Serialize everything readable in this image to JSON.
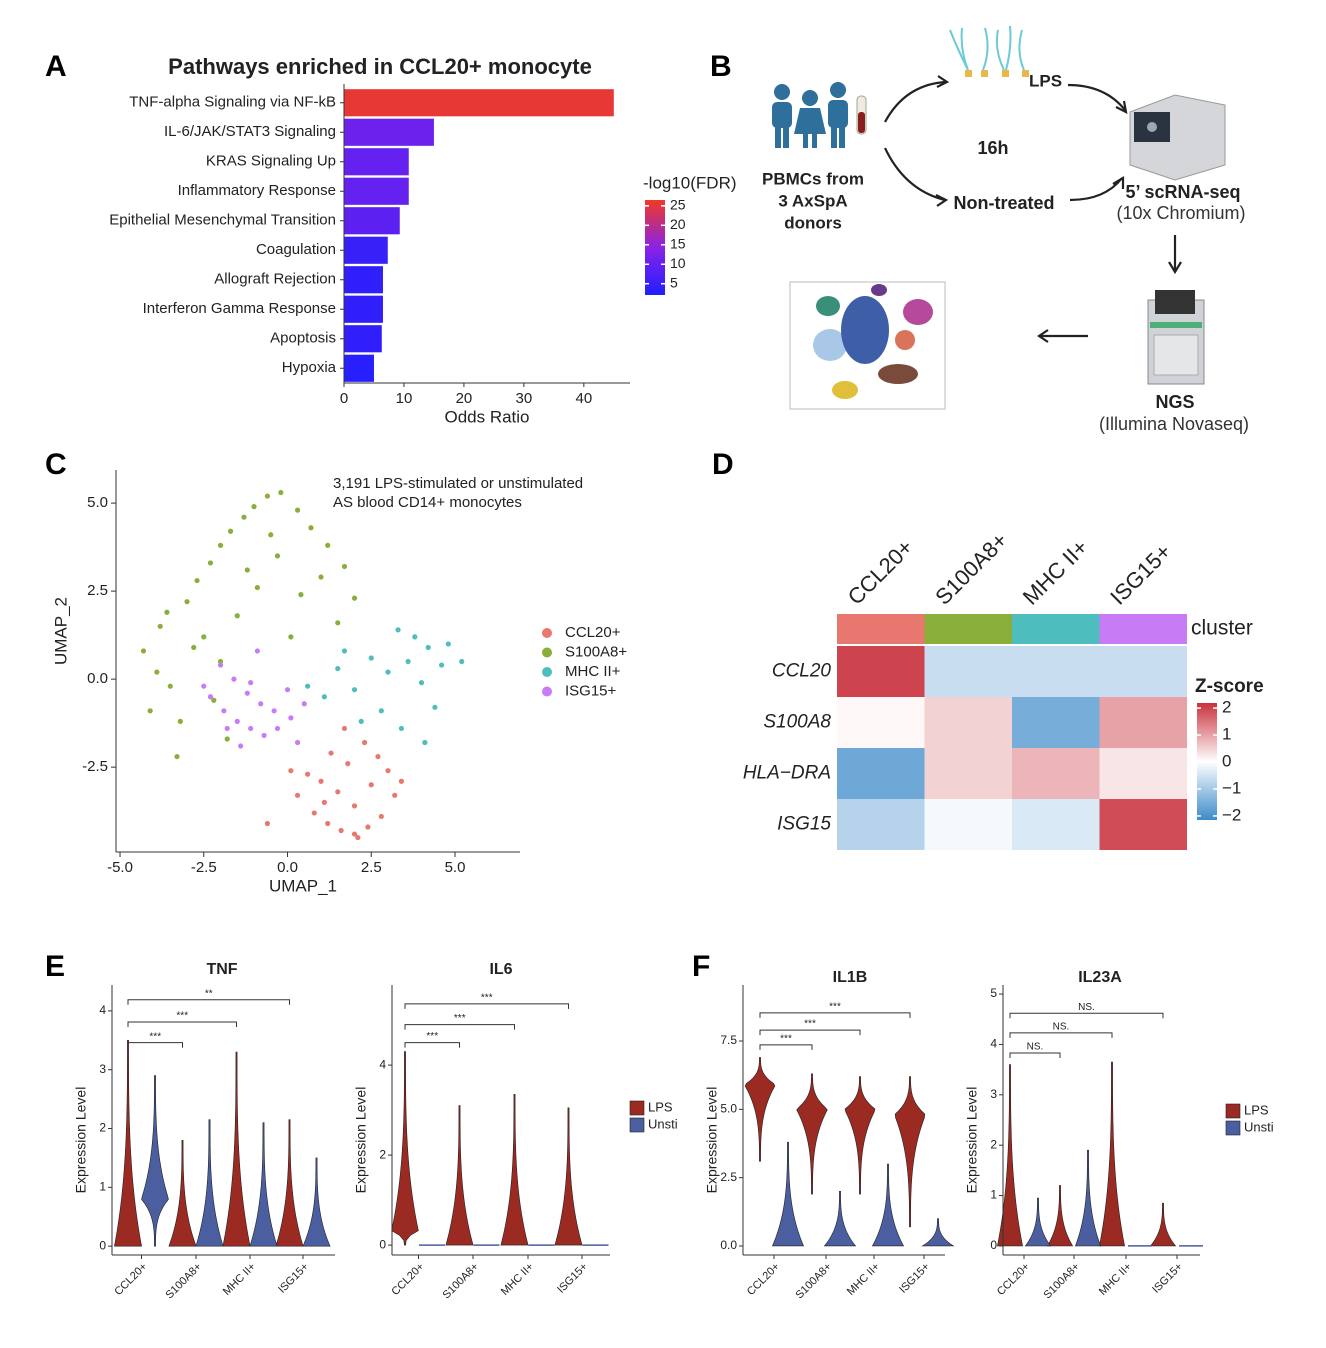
{
  "panel_labels": [
    "A",
    "B",
    "C",
    "D",
    "E",
    "F"
  ],
  "diagram": {
    "lps": "LPS",
    "time": "16h",
    "source": [
      "PBMCs from",
      "3 AxSpA",
      "donors"
    ],
    "control": "Non-treated",
    "sequencing": "5’ scRNA-seq",
    "platform": "(10x Chromium)",
    "ngs": "NGS",
    "ngs_platform": "(Illumina Novaseq)"
  },
  "chart_data": [
    {
      "type": "bar",
      "orientation": "horizontal",
      "title": "Pathways enriched in CCL20+ monocyte",
      "categories": [
        "TNF-alpha Signaling via NF-kB",
        "IL-6/JAK/STAT3 Signaling",
        "KRAS Signaling Up",
        "Inflammatory Response",
        "Epithelial Mesenchymal Transition",
        "Coagulation",
        "Allograft Rejection",
        "Interferon Gamma Response",
        "Apoptosis",
        "Hypoxia"
      ],
      "values": [
        45,
        15,
        10.8,
        10.8,
        9.3,
        7.3,
        6.5,
        6.5,
        6.3,
        5
      ],
      "color_values": [
        25.5,
        11,
        10,
        10,
        9,
        5,
        4,
        4,
        4,
        3
      ],
      "colorbar": {
        "label": "-log10(FDR)",
        "lim": [
          2.1,
          26.5
        ],
        "ticks": [
          5,
          10,
          15,
          20,
          25
        ],
        "colors": [
          "#1f1fff",
          "#8a22e6",
          "#f03a25"
        ]
      },
      "xlabel": "Odds Ratio",
      "xlim": [
        0,
        47.7
      ],
      "xticks": [
        0,
        10,
        20,
        30,
        40
      ]
    },
    {
      "type": "scatter",
      "annotation": [
        "3,191 LPS-stimulated or unstimulated",
        "AS blood CD14+ monocytes"
      ],
      "xlabel": "UMAP_1",
      "ylabel": "UMAP_2",
      "xlim": [
        -5.12,
        6.94
      ],
      "ylim": [
        -4.91,
        5.94
      ],
      "xticks": [
        {
          "value": -5,
          "label": "-5.0"
        },
        -2.5,
        {
          "value": 0,
          "label": "0.0"
        },
        2.5,
        {
          "value": 5,
          "label": "5.0"
        }
      ],
      "yticks": [
        -2.5,
        {
          "value": 0,
          "label": "0.0"
        },
        2.5,
        {
          "value": 5,
          "label": "5.0"
        }
      ],
      "legend": "right",
      "series": [
        {
          "name": "CCL20+",
          "color": "#e8776f",
          "x": [
            0.3,
            0.8,
            1.2,
            1.6,
            2,
            2.4,
            2.8,
            3.2,
            0.6,
            1,
            1.5,
            2,
            2.5,
            3,
            1.3,
            1.8,
            2.3,
            2.7,
            0.1,
            3.4,
            1.1,
            2.1,
            -0.6,
            1.7
          ],
          "values": [
            -3.3,
            -3.8,
            -4.1,
            -4.3,
            -4.4,
            -4.2,
            -3.9,
            -3.3,
            -2.7,
            -2.9,
            -3.2,
            -3.6,
            -3,
            -2.6,
            -2.1,
            -2.4,
            -1.8,
            -2.2,
            -2.6,
            -2.9,
            -3.5,
            -4.5,
            -4.1,
            -1.4
          ]
        },
        {
          "name": "S100A8+",
          "color": "#8aae3a",
          "x": [
            -4.3,
            -3.8,
            -3.5,
            -3.9,
            -3,
            -2.7,
            -2.3,
            -2,
            -1.7,
            -1.3,
            -1,
            -0.6,
            -0.2,
            0.3,
            0.7,
            1.2,
            1.7,
            -2.5,
            -2,
            -1.5,
            -0.9,
            -0.3,
            0.4,
            1,
            1.5,
            -3.2,
            -2.8,
            -3.6,
            -1.2,
            -0.5,
            -2.2,
            -4.1,
            -3.3,
            0.1,
            -1.8,
            2
          ],
          "values": [
            0.8,
            1.5,
            -0.2,
            0.2,
            2.2,
            2.8,
            3.3,
            3.8,
            4.2,
            4.6,
            4.9,
            5.2,
            5.3,
            4.8,
            4.3,
            3.8,
            3.2,
            1.2,
            0.5,
            1.8,
            2.6,
            3.5,
            2.4,
            2.9,
            1.6,
            -1.2,
            0.9,
            1.9,
            3.1,
            4.1,
            -0.6,
            -0.9,
            -2.2,
            1.2,
            -1.7,
            2.3
          ]
        },
        {
          "name": "MHC II+",
          "color": "#4dbdbd",
          "x": [
            3.3,
            3.8,
            4.2,
            4.6,
            3.6,
            4,
            4.4,
            3,
            2.5,
            2,
            1.5,
            1.1,
            0.6,
            2.8,
            3.4,
            4.8,
            2.2,
            1.7,
            4.1,
            5.2
          ],
          "values": [
            1.4,
            1.2,
            0.9,
            0.4,
            0.5,
            -0.1,
            -0.8,
            0.2,
            0.6,
            -0.3,
            0.3,
            -0.5,
            -0.2,
            -0.9,
            -1.4,
            1,
            -1.2,
            0.8,
            -1.8,
            0.5
          ]
        },
        {
          "name": "ISG15+",
          "color": "#c77cf5",
          "x": [
            -2.3,
            -1.9,
            -1.5,
            -1.1,
            -0.7,
            -0.3,
            0.1,
            0.5,
            -2,
            -1.6,
            -1.2,
            -0.8,
            -0.4,
            0,
            -1.4,
            -0.9,
            -2.5,
            0.3,
            -1.1,
            -1.8
          ],
          "values": [
            -0.5,
            -0.9,
            -1.2,
            -1.4,
            -1.6,
            -1.4,
            -1.1,
            -0.7,
            0.4,
            0,
            -0.4,
            -0.7,
            -0.9,
            -0.3,
            -1.9,
            0.8,
            -0.2,
            -1.8,
            -0.1,
            -1.4
          ]
        }
      ]
    },
    {
      "type": "heatmap",
      "columns": [
        "CCL20+",
        "S100A8+",
        "MHC II+",
        "ISG15+"
      ],
      "rows": [
        "CCL20",
        "S100A8",
        "HLA−DRA",
        "ISG15"
      ],
      "values": [
        [
          2,
          -0.6,
          -0.6,
          -0.6
        ],
        [
          0.1,
          0.5,
          -1.5,
          1.0
        ],
        [
          -1.6,
          0.5,
          0.8,
          0.3
        ],
        [
          -0.8,
          -0.1,
          -0.4,
          1.9
        ]
      ],
      "cluster_label": "cluster",
      "cluster_colors": [
        "#e8776f",
        "#8aae3a",
        "#4dbdbd",
        "#c77cf5"
      ],
      "colorbar": {
        "label": "Z-score",
        "lim": [
          -2.15,
          2.19
        ],
        "ticks": [
          2,
          1,
          0,
          {
            "value": -1,
            "label": "−1"
          },
          {
            "value": -2,
            "label": "−2"
          }
        ],
        "colors": [
          "#3d8bc9",
          "#ffffff",
          "#c9323d"
        ]
      }
    },
    {
      "type": "violin",
      "title": "TNF",
      "ylabel": "Expression Level",
      "categories": [
        "CCL20+",
        "S100A8+",
        "MHC II+",
        "ISG15+"
      ],
      "ylim": [
        -0.15,
        4.44
      ],
      "yticks": [
        0,
        1,
        2,
        3,
        4
      ],
      "series": [
        {
          "name": "LPS",
          "color": "#9b2a22",
          "values": [
            3.5,
            1.8,
            3.3,
            2.15
          ],
          "min": [
            0,
            0,
            0,
            0
          ],
          "mode": [
            0,
            0,
            0,
            0
          ]
        },
        {
          "name": "Unsti",
          "color": "#4a5ea0",
          "values": [
            2.9,
            2.15,
            2.1,
            1.5
          ],
          "min": [
            0,
            0,
            0,
            0
          ],
          "mode": [
            0.8,
            0,
            0,
            0
          ]
        }
      ],
      "comparisons": [
        {
          "from": 0,
          "to": 1,
          "y": 3.46,
          "label": "***"
        },
        {
          "from": 0,
          "to": 2,
          "y": 3.81,
          "label": "***"
        },
        {
          "from": 0,
          "to": 3,
          "y": 4.19,
          "label": "**"
        }
      ]
    },
    {
      "type": "violin",
      "title": "IL6",
      "ylabel": "Expression Level",
      "categories": [
        "CCL20+",
        "S100A8+",
        "MHC II+",
        "ISG15+"
      ],
      "ylim": [
        -0.22,
        5.78
      ],
      "yticks": [
        0,
        2,
        4
      ],
      "legend": "right",
      "series": [
        {
          "name": "LPS",
          "color": "#9b2a22",
          "values": [
            4.3,
            3.1,
            3.35,
            3.05
          ],
          "min": [
            0,
            0,
            0,
            0
          ],
          "mode": [
            0.3,
            0,
            0,
            0
          ]
        },
        {
          "name": "Unsti",
          "color": "#4a5ea0",
          "values": [
            0,
            0,
            0,
            0
          ],
          "min": [
            0,
            0,
            0,
            0
          ],
          "mode": [
            0,
            0,
            0,
            0
          ]
        }
      ],
      "comparisons": [
        {
          "from": 0,
          "to": 1,
          "y": 4.5,
          "label": "***"
        },
        {
          "from": 0,
          "to": 2,
          "y": 4.9,
          "label": "***"
        },
        {
          "from": 0,
          "to": 3,
          "y": 5.36,
          "label": "***"
        }
      ]
    },
    {
      "type": "violin",
      "title": "IL1B",
      "ylabel": "Expression Level",
      "categories": [
        "CCL20+",
        "S100A8+",
        "MHC II+",
        "ISG15+"
      ],
      "ylim": [
        -0.33,
        9.55
      ],
      "yticks": [
        {
          "value": 0,
          "label": "0.0"
        },
        2.5,
        {
          "value": 5,
          "label": "5.0"
        },
        7.5
      ],
      "series": [
        {
          "name": "LPS",
          "color": "#9b2a22",
          "values": [
            6.9,
            6.3,
            6.2,
            6.2
          ],
          "min": [
            3.1,
            1.9,
            1.9,
            0.7
          ],
          "mode": [
            5.9,
            5.0,
            5.0,
            4.8
          ]
        },
        {
          "name": "Unsti",
          "color": "#4a5ea0",
          "values": [
            3.8,
            2.0,
            3.0,
            1.0
          ],
          "min": [
            0,
            0,
            0,
            0
          ],
          "mode": [
            0,
            0,
            0,
            0
          ]
        }
      ],
      "comparisons": [
        {
          "from": 0,
          "to": 1,
          "y": 7.36,
          "label": "***"
        },
        {
          "from": 0,
          "to": 2,
          "y": 7.9,
          "label": "***"
        },
        {
          "from": 0,
          "to": 3,
          "y": 8.53,
          "label": "***"
        }
      ]
    },
    {
      "type": "violin",
      "title": "IL23A",
      "ylabel": "Expression Level",
      "categories": [
        "CCL20+",
        "S100A8+",
        "MHC II+",
        "ISG15+"
      ],
      "ylim": [
        -0.18,
        5.18
      ],
      "yticks": [
        0,
        1,
        2,
        3,
        4,
        5
      ],
      "legend": "right",
      "series": [
        {
          "name": "LPS",
          "color": "#9b2a22",
          "values": [
            3.6,
            1.2,
            3.65,
            0.85
          ],
          "min": [
            0,
            0,
            0,
            0
          ],
          "mode": [
            0,
            0,
            0,
            0
          ]
        },
        {
          "name": "Unsti",
          "color": "#4a5ea0",
          "values": [
            0.95,
            1.9,
            0,
            0
          ],
          "min": [
            0,
            0,
            0,
            0
          ],
          "mode": [
            0,
            0,
            0,
            0
          ]
        }
      ],
      "comparisons": [
        {
          "from": 0,
          "to": 1,
          "y": 3.83,
          "label": "NS."
        },
        {
          "from": 0,
          "to": 2,
          "y": 4.23,
          "label": "NS."
        },
        {
          "from": 0,
          "to": 3,
          "y": 4.62,
          "label": "NS."
        }
      ]
    }
  ]
}
